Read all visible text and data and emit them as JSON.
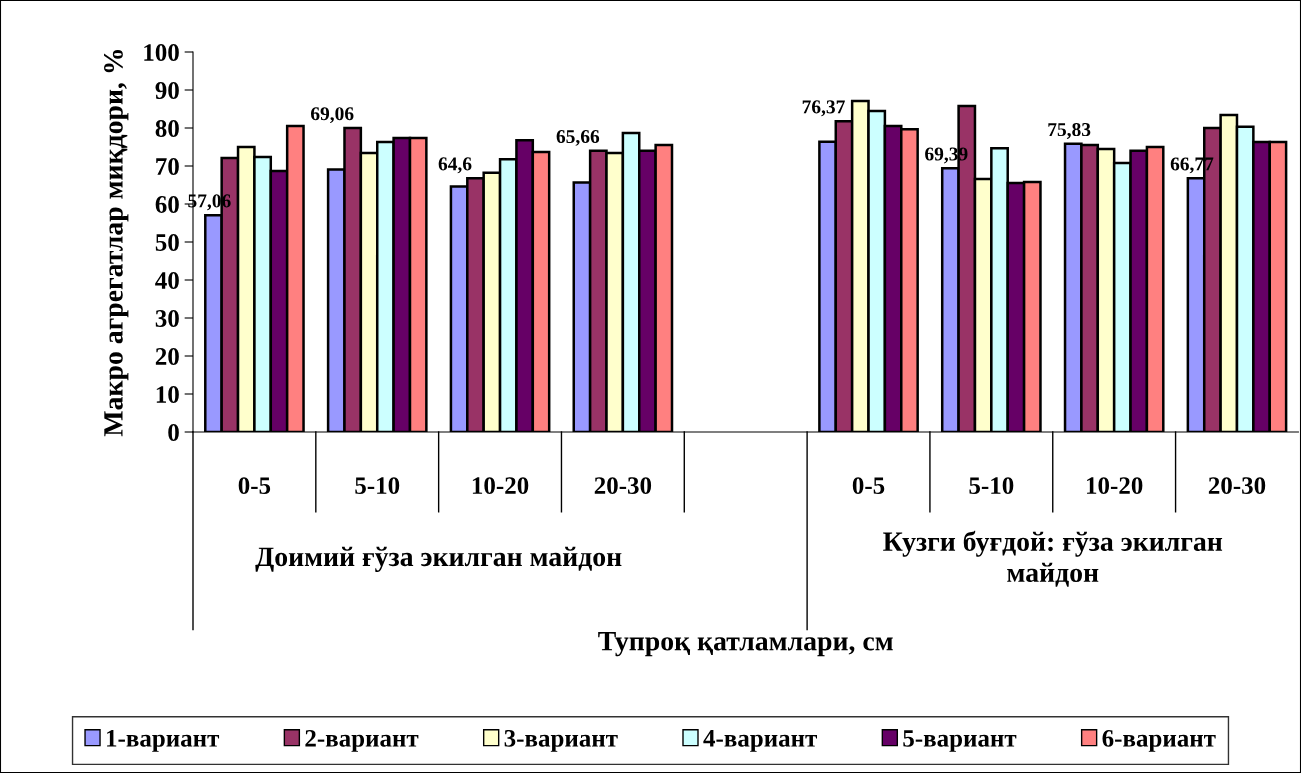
{
  "chart_data": {
    "type": "bar",
    "ylabel": "Макро агрегатлар миқдори, %",
    "xlabel": "Тупроқ қатламлари, см",
    "categories": [
      "0-5",
      "5-10",
      "10-20",
      "20-30",
      null,
      "0-5",
      "5-10",
      "10-20",
      "20-30"
    ],
    "annotations": [
      "Доимий ғўза экилган майдон",
      "Кузги буғдой: ғўза экилган майдон"
    ],
    "ylim": [
      0,
      100
    ],
    "yticks": [
      0,
      10,
      20,
      30,
      40,
      50,
      60,
      70,
      80,
      90,
      100
    ],
    "grid": false,
    "legend": "bottom",
    "series": [
      {
        "name": "1-вариант",
        "color": "#9999ff",
        "values": [
          57.06,
          69.06,
          64.6,
          65.66,
          null,
          76.37,
          69.39,
          75.83,
          66.77
        ],
        "value_labels": [
          "57,06",
          "69,06",
          "64,6",
          "65,66",
          null,
          "76,37",
          "69,39",
          "75,83",
          "66,77"
        ]
      },
      {
        "name": "2-вариант",
        "color": "#993366",
        "values": [
          72.1,
          80,
          66.8,
          74,
          null,
          81.8,
          85.8,
          75.5,
          80
        ]
      },
      {
        "name": "3-вариант",
        "color": "#ffffcc",
        "values": [
          75,
          73.4,
          68.2,
          73.4,
          null,
          87.1,
          66.6,
          74.5,
          83.4
        ]
      },
      {
        "name": "4-вариант",
        "color": "#ccffff",
        "values": [
          72.4,
          76.3,
          71.8,
          78.7,
          null,
          84.5,
          74.7,
          70.8,
          80.3
        ]
      },
      {
        "name": "5-вариант",
        "color": "#660066",
        "values": [
          68.7,
          77.4,
          76.8,
          74,
          null,
          80.5,
          65.5,
          74,
          76.3
        ]
      },
      {
        "name": "6-вариант",
        "color": "#ff8080",
        "values": [
          80.5,
          77.4,
          73.7,
          75.5,
          null,
          79.7,
          65.8,
          75,
          76.3
        ]
      }
    ]
  }
}
